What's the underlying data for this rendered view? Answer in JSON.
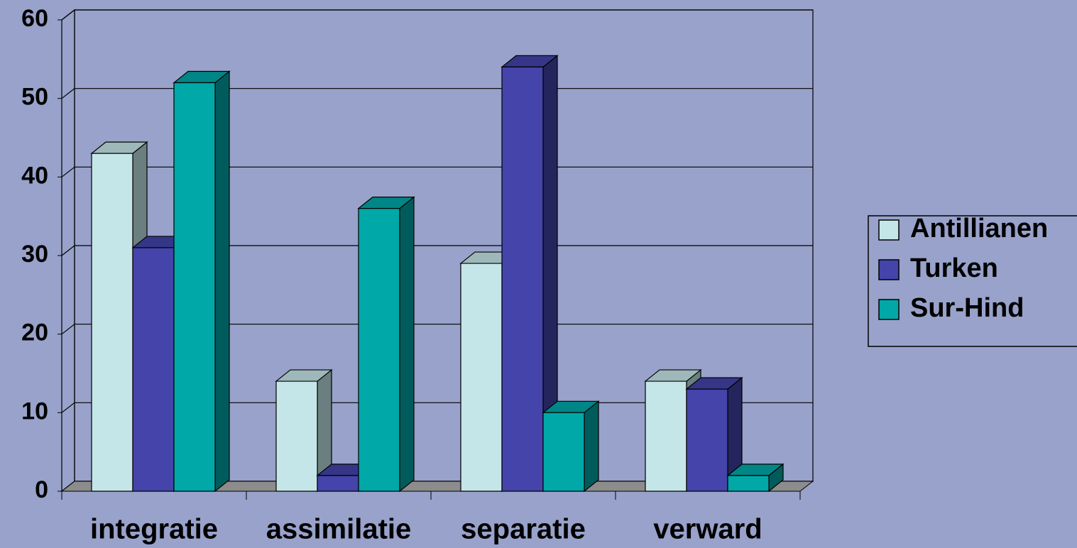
{
  "chart_data": {
    "type": "bar3d",
    "categories": [
      "integratie",
      "assimilatie",
      "separatie",
      "verward"
    ],
    "series": [
      {
        "name": "Antillianen",
        "color": "#c5e6e8",
        "values": [
          43,
          14,
          29,
          14
        ]
      },
      {
        "name": "Turken",
        "color": "#4444aa",
        "values": [
          31,
          2,
          54,
          13
        ]
      },
      {
        "name": "Sur-Hind",
        "color": "#00a8a8",
        "values": [
          52,
          36,
          10,
          2
        ]
      }
    ],
    "ylim": [
      0,
      60
    ],
    "yticks": [
      0,
      10,
      20,
      30,
      40,
      50,
      60
    ],
    "grid": true,
    "legend": "right"
  }
}
